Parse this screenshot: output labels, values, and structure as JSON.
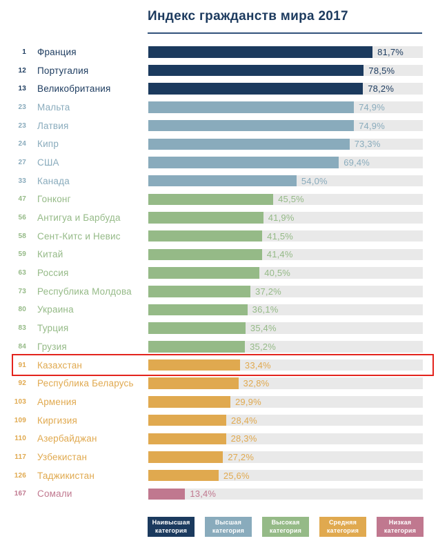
{
  "title": "Индекс гражданств мира 2017",
  "categories": {
    "highest": {
      "name": "Наивысшая категория",
      "color": "#1b3a5e"
    },
    "high": {
      "name": "Высшая категория",
      "color": "#89abbc"
    },
    "upper": {
      "name": "Высокая категория",
      "color": "#95ba87"
    },
    "middle": {
      "name": "Средняя категория",
      "color": "#e0a94f"
    },
    "low": {
      "name": "Низкая категория",
      "color": "#c0788f"
    }
  },
  "colors": {
    "track": "#e9e9e9",
    "divider": "#30517a",
    "title_text": "#1c3a5e",
    "highlight_border": "#e3231c",
    "legend_text": "#ffffff",
    "background": "#ffffff"
  },
  "chart_data": {
    "type": "bar",
    "orientation": "horizontal",
    "title": "Индекс гражданств мира 2017",
    "value_axis_range": [
      0,
      100
    ],
    "value_unit": "%",
    "grid": false,
    "legend_position": "bottom",
    "highlighted_country": "Казахстан",
    "rows": [
      {
        "rank": "1",
        "country": "Франция",
        "value": 81.7,
        "label": "81,7%",
        "category": "highest",
        "highlighted": false
      },
      {
        "rank": "12",
        "country": "Португалия",
        "value": 78.5,
        "label": "78,5%",
        "category": "highest",
        "highlighted": false
      },
      {
        "rank": "13",
        "country": "Великобритания",
        "value": 78.2,
        "label": "78,2%",
        "category": "highest",
        "highlighted": false
      },
      {
        "rank": "23",
        "country": "Мальта",
        "value": 74.9,
        "label": "74,9%",
        "category": "high",
        "highlighted": false
      },
      {
        "rank": "23",
        "country": "Латвия",
        "value": 74.9,
        "label": "74,9%",
        "category": "high",
        "highlighted": false
      },
      {
        "rank": "24",
        "country": "Кипр",
        "value": 73.3,
        "label": "73,3%",
        "category": "high",
        "highlighted": false
      },
      {
        "rank": "27",
        "country": "США",
        "value": 69.4,
        "label": "69,4%",
        "category": "high",
        "highlighted": false
      },
      {
        "rank": "33",
        "country": "Канада",
        "value": 54.0,
        "label": "54,0%",
        "category": "high",
        "highlighted": false
      },
      {
        "rank": "47",
        "country": "Гонконг",
        "value": 45.5,
        "label": "45,5%",
        "category": "upper",
        "highlighted": false
      },
      {
        "rank": "56",
        "country": "Антигуа и Барбуда",
        "value": 41.9,
        "label": "41,9%",
        "category": "upper",
        "highlighted": false
      },
      {
        "rank": "58",
        "country": "Сент-Китс и Невис",
        "value": 41.5,
        "label": "41,5%",
        "category": "upper",
        "highlighted": false
      },
      {
        "rank": "59",
        "country": "Китай",
        "value": 41.4,
        "label": "41,4%",
        "category": "upper",
        "highlighted": false
      },
      {
        "rank": "63",
        "country": "Россия",
        "value": 40.5,
        "label": "40,5%",
        "category": "upper",
        "highlighted": false
      },
      {
        "rank": "73",
        "country": "Республика Молдова",
        "value": 37.2,
        "label": "37,2%",
        "category": "upper",
        "highlighted": false
      },
      {
        "rank": "80",
        "country": "Украина",
        "value": 36.1,
        "label": "36,1%",
        "category": "upper",
        "highlighted": false
      },
      {
        "rank": "83",
        "country": "Турция",
        "value": 35.4,
        "label": "35,4%",
        "category": "upper",
        "highlighted": false
      },
      {
        "rank": "84",
        "country": "Грузия",
        "value": 35.2,
        "label": "35,2%",
        "category": "upper",
        "highlighted": false
      },
      {
        "rank": "91",
        "country": "Казахстан",
        "value": 33.4,
        "label": "33,4%",
        "category": "middle",
        "highlighted": true
      },
      {
        "rank": "92",
        "country": "Республика Беларусь",
        "value": 32.8,
        "label": "32,8%",
        "category": "middle",
        "highlighted": false
      },
      {
        "rank": "103",
        "country": "Армения",
        "value": 29.9,
        "label": "29,9%",
        "category": "middle",
        "highlighted": false
      },
      {
        "rank": "109",
        "country": "Киргизия",
        "value": 28.4,
        "label": "28,4%",
        "category": "middle",
        "highlighted": false
      },
      {
        "rank": "110",
        "country": "Азербайджан",
        "value": 28.3,
        "label": "28,3%",
        "category": "middle",
        "highlighted": false
      },
      {
        "rank": "117",
        "country": "Узбекистан",
        "value": 27.2,
        "label": "27,2%",
        "category": "middle",
        "highlighted": false
      },
      {
        "rank": "126",
        "country": "Таджикистан",
        "value": 25.6,
        "label": "25,6%",
        "category": "middle",
        "highlighted": false
      },
      {
        "rank": "167",
        "country": "Сомали",
        "value": 13.4,
        "label": "13,4%",
        "category": "low",
        "highlighted": false
      }
    ],
    "legend": [
      {
        "label": "Наивысшая категория",
        "category": "highest"
      },
      {
        "label": "Высшая категория",
        "category": "high"
      },
      {
        "label": "Высокая категория",
        "category": "upper"
      },
      {
        "label": "Средняя категория",
        "category": "middle"
      },
      {
        "label": "Низкая категория",
        "category": "low"
      }
    ]
  }
}
